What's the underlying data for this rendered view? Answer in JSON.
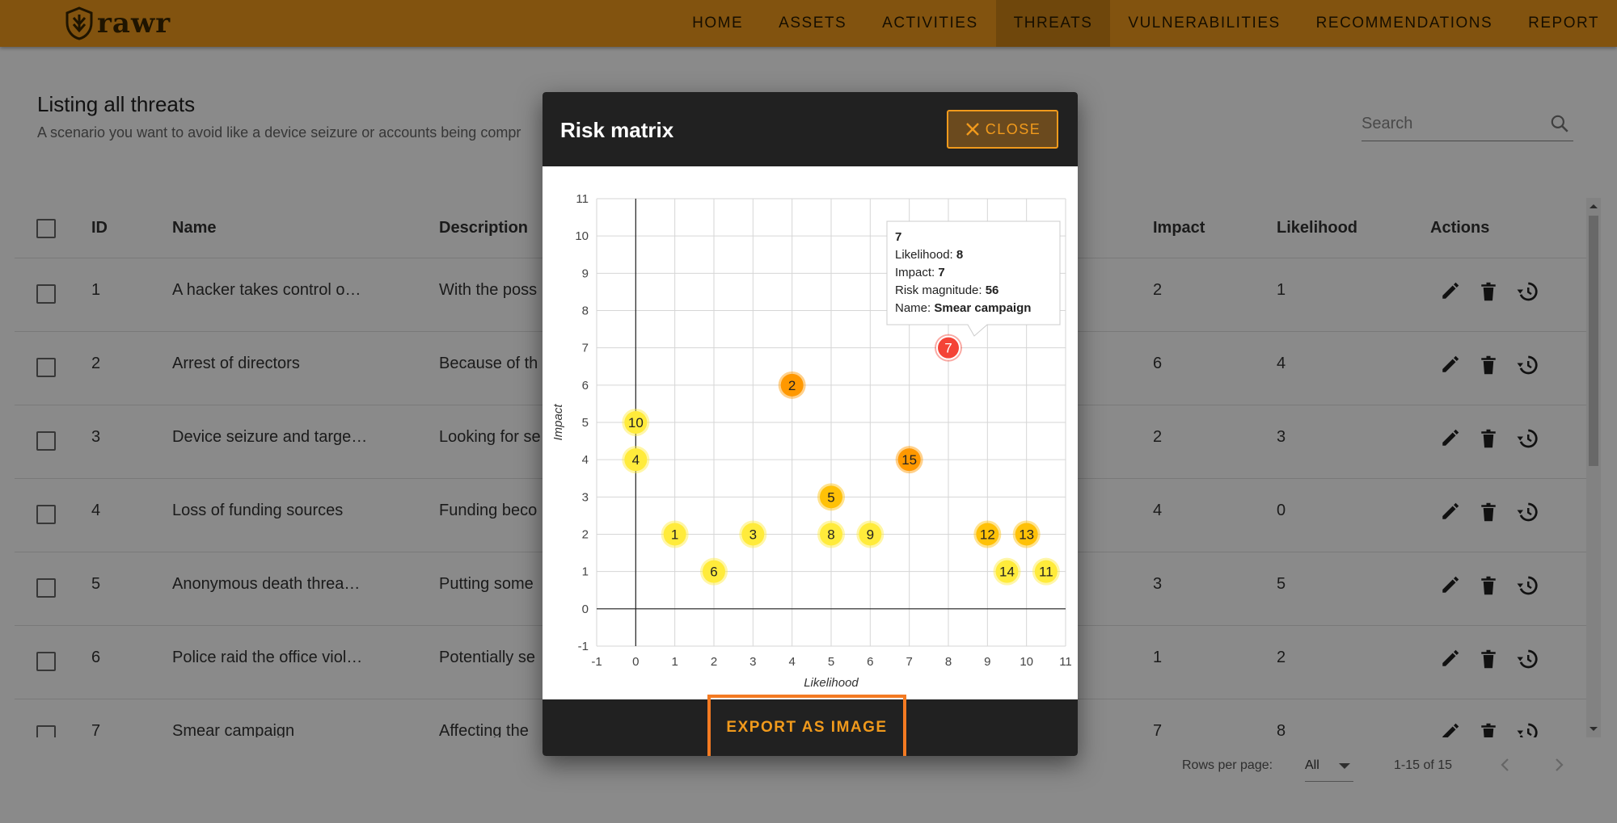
{
  "app": {
    "brand": "rawr"
  },
  "nav": {
    "items": [
      {
        "label": "HOME",
        "active": false
      },
      {
        "label": "ASSETS",
        "active": false
      },
      {
        "label": "ACTIVITIES",
        "active": false
      },
      {
        "label": "THREATS",
        "active": true
      },
      {
        "label": "VULNERABILITIES",
        "active": false
      },
      {
        "label": "RECOMMENDATIONS",
        "active": false
      },
      {
        "label": "REPORT",
        "active": false
      }
    ]
  },
  "page": {
    "title": "Listing all threats",
    "subtitle": "A scenario you want to avoid like a device seizure or accounts being compr",
    "search_placeholder": "Search"
  },
  "table": {
    "headers": {
      "id": "ID",
      "name": "Name",
      "description": "Description",
      "impact": "Impact",
      "likelihood": "Likelihood",
      "actions": "Actions"
    },
    "rows": [
      {
        "id": "1",
        "name": "A hacker takes control o…",
        "description": "With the poss",
        "impact": "2",
        "likelihood": "1"
      },
      {
        "id": "2",
        "name": "Arrest of directors",
        "description": "Because of th",
        "impact": "6",
        "likelihood": "4"
      },
      {
        "id": "3",
        "name": "Device seizure and targe…",
        "description": "Looking for se",
        "impact": "2",
        "likelihood": "3"
      },
      {
        "id": "4",
        "name": "Loss of funding sources",
        "description": "Funding beco",
        "impact": "4",
        "likelihood": "0"
      },
      {
        "id": "5",
        "name": "Anonymous death threa…",
        "description": "Putting some",
        "impact": "3",
        "likelihood": "5"
      },
      {
        "id": "6",
        "name": "Police raid the office viol…",
        "description": "Potentially se",
        "impact": "1",
        "likelihood": "2"
      },
      {
        "id": "7",
        "name": "Smear campaign",
        "description": "Affecting the",
        "impact": "7",
        "likelihood": "8"
      }
    ]
  },
  "footer": {
    "rows_per_page_label": "Rows per page:",
    "rows_per_page_value": "All",
    "range": "1-15 of 15"
  },
  "dialog": {
    "title": "Risk matrix",
    "close_label": "CLOSE",
    "export_label": "EXPORT AS IMAGE"
  },
  "colors": {
    "brand": "#f19a1c",
    "dialog_bar": "#212121",
    "low": "#ffeb3b",
    "medium": "#ffc107",
    "high": "#ff9800",
    "critical": "#f44336"
  },
  "chart_data": {
    "type": "scatter",
    "xlabel": "Likelihood",
    "ylabel": "Impact",
    "xlim": [
      -1,
      11
    ],
    "ylim": [
      -1,
      11
    ],
    "xticks": [
      -1,
      0,
      1,
      2,
      3,
      4,
      5,
      6,
      7,
      8,
      9,
      10,
      11
    ],
    "yticks": [
      -1,
      0,
      1,
      2,
      3,
      4,
      5,
      6,
      7,
      8,
      9,
      10,
      11
    ],
    "grid": true,
    "points": [
      {
        "label": "1",
        "x": 1,
        "y": 2,
        "level": "low"
      },
      {
        "label": "2",
        "x": 4,
        "y": 6,
        "level": "high"
      },
      {
        "label": "3",
        "x": 3,
        "y": 2,
        "level": "low"
      },
      {
        "label": "4",
        "x": 0,
        "y": 4,
        "level": "low"
      },
      {
        "label": "5",
        "x": 5,
        "y": 3,
        "level": "medium"
      },
      {
        "label": "6",
        "x": 2,
        "y": 1,
        "level": "low"
      },
      {
        "label": "7",
        "x": 8,
        "y": 7,
        "level": "critical"
      },
      {
        "label": "8",
        "x": 5,
        "y": 2,
        "level": "low"
      },
      {
        "label": "9",
        "x": 6,
        "y": 2,
        "level": "low"
      },
      {
        "label": "10",
        "x": 0,
        "y": 5,
        "level": "low"
      },
      {
        "label": "11",
        "x": 10.5,
        "y": 1,
        "level": "low"
      },
      {
        "label": "12",
        "x": 9,
        "y": 2,
        "level": "medium"
      },
      {
        "label": "13",
        "x": 10,
        "y": 2,
        "level": "medium"
      },
      {
        "label": "14",
        "x": 9.5,
        "y": 1,
        "level": "low"
      },
      {
        "label": "15",
        "x": 7,
        "y": 4,
        "level": "high"
      }
    ],
    "tooltip": {
      "title": "7",
      "likelihood_label": "Likelihood:",
      "likelihood_value": "8",
      "impact_label": "Impact:",
      "impact_value": "7",
      "magnitude_label": "Risk magnitude:",
      "magnitude_value": "56",
      "name_label": "Name:",
      "name_value": "Smear campaign"
    }
  }
}
